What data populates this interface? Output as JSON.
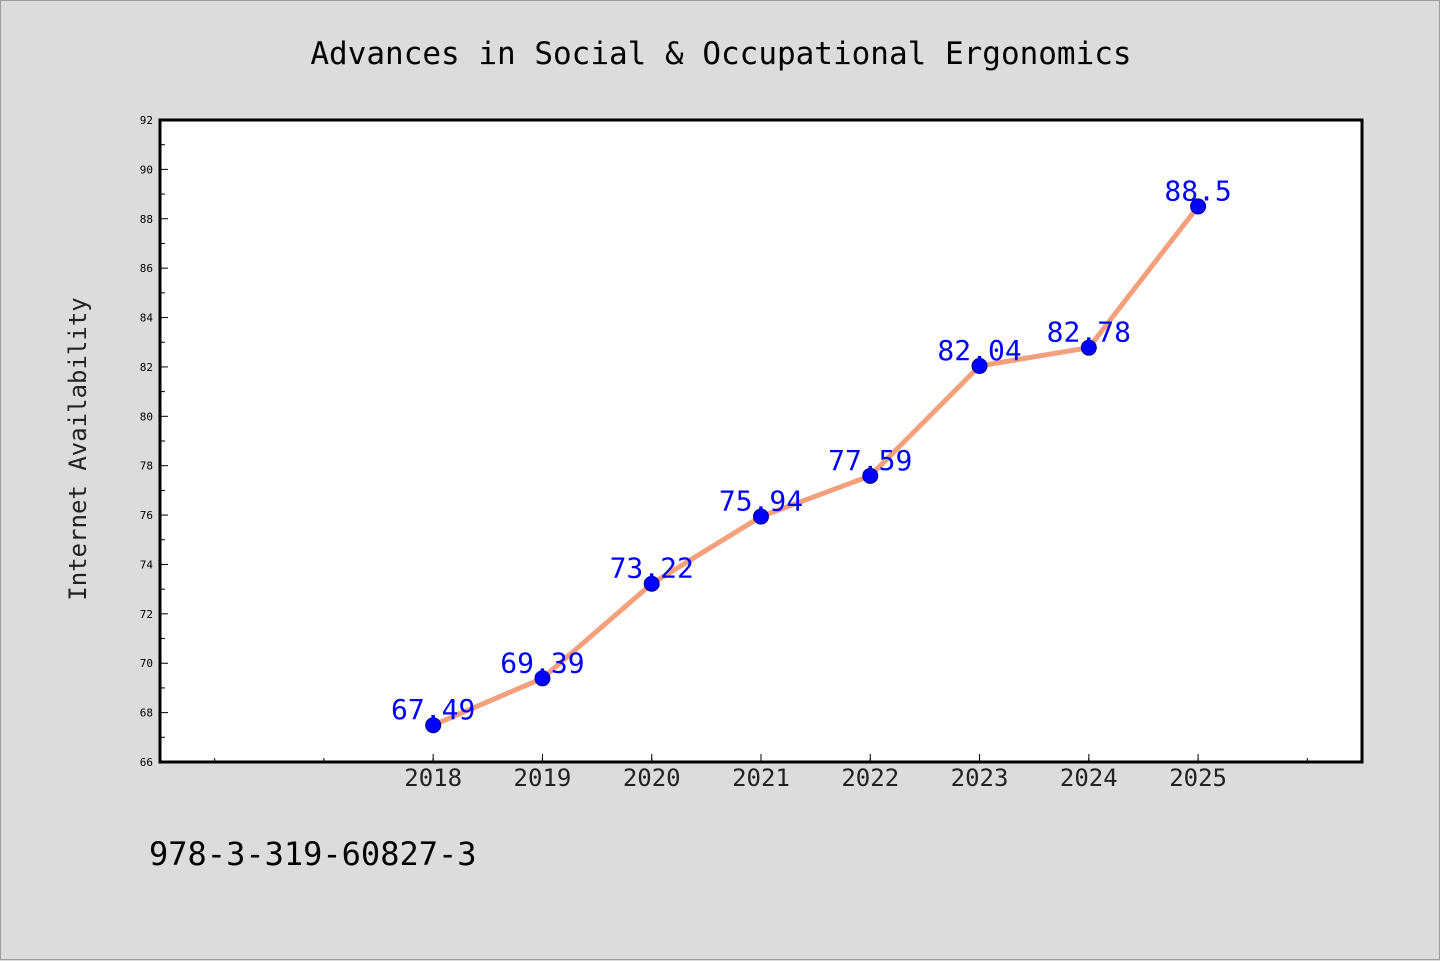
{
  "chart_data": {
    "type": "line",
    "title": "Advances in Social & Occupational Ergonomics",
    "xlabel": "",
    "ylabel": "Internet Availability",
    "categories": [
      "2018",
      "2019",
      "2020",
      "2021",
      "2022",
      "2023",
      "2024",
      "2025"
    ],
    "x_range": [
      2015.5,
      2026.5
    ],
    "series": [
      {
        "values": [
          67.49,
          69.39,
          73.22,
          75.94,
          77.59,
          82.04,
          82.78,
          88.5
        ]
      }
    ],
    "data_labels": [
      "67.49",
      "69.39",
      "73.22",
      "75.94",
      "77.59",
      "82.04",
      "82.78",
      "88.5"
    ],
    "ylim": [
      66,
      92
    ],
    "y_ticks": [
      "66",
      "68",
      "70",
      "72",
      "74",
      "76",
      "78",
      "80",
      "82",
      "84",
      "86",
      "88",
      "90",
      "92"
    ],
    "grid": false,
    "legend": "none",
    "colors": {
      "line": "#f4a07c",
      "marker": "#0000ff",
      "label": "#0000ff",
      "axes": "#000000",
      "plot_bg": "#ffffff",
      "page_bg": "#dcdcdc"
    }
  },
  "footer": {
    "isbn": "978-3-319-60827-3"
  }
}
